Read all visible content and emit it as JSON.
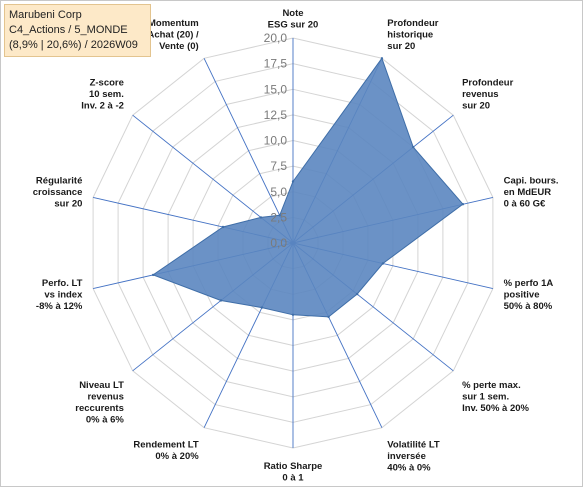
{
  "title_box": {
    "line1": "Marubeni Corp",
    "line2": "C4_Actions / 5_MONDE",
    "line3": "(8,9% | 20,6%) / 2026W09"
  },
  "colors": {
    "fill": "#5b86c0",
    "stroke": "#3f6ea8",
    "grid": "#d4d4d4",
    "spoke": "#4472c4",
    "title_bg": "#fde9c8"
  },
  "chart_data": {
    "type": "radar",
    "rmin": 0,
    "rmax": 20,
    "ticks": [
      "0,0",
      "2,5",
      "5,0",
      "7,5",
      "10,0",
      "12,5",
      "15,0",
      "17,5",
      "20,0"
    ],
    "axes": [
      {
        "lines": [
          "Note",
          "ESG sur 20"
        ],
        "value": 6
      },
      {
        "lines": [
          "Profondeur",
          "historique",
          "sur 20"
        ],
        "value": 20
      },
      {
        "lines": [
          "Profondeur",
          "revenus",
          "sur 20"
        ],
        "value": 15
      },
      {
        "lines": [
          "Capi. bours.",
          "en MdEUR",
          "0 à 60 G€"
        ],
        "value": 17
      },
      {
        "lines": [
          "% perfo 1A",
          "positive",
          "50% à 80%"
        ],
        "value": 9
      },
      {
        "lines": [
          "% perte max.",
          "sur 1 sem.",
          "Inv. 50% à 20%"
        ],
        "value": 8
      },
      {
        "lines": [
          "Volatilité LT",
          "inversée",
          "40% à 0%"
        ],
        "value": 8
      },
      {
        "lines": [
          "Ratio Sharpe",
          "0 à 1"
        ],
        "value": 7
      },
      {
        "lines": [
          "Rendement LT",
          "0% à 20%"
        ],
        "value": 7
      },
      {
        "lines": [
          "Niveau LT",
          "revenus",
          "reccurents",
          "0% à 6%"
        ],
        "value": 9
      },
      {
        "lines": [
          "Perfo. LT",
          "vs index",
          "-8% à 12%"
        ],
        "value": 14
      },
      {
        "lines": [
          "Régularité",
          "croissance",
          "sur 20"
        ],
        "value": 7
      },
      {
        "lines": [
          "Z-score",
          "10 sem.",
          "Inv. 2 à -2"
        ],
        "value": 4
      },
      {
        "lines": [
          "Momentum",
          "Achat (20) /",
          "Vente (0)"
        ],
        "value": 3
      }
    ]
  }
}
